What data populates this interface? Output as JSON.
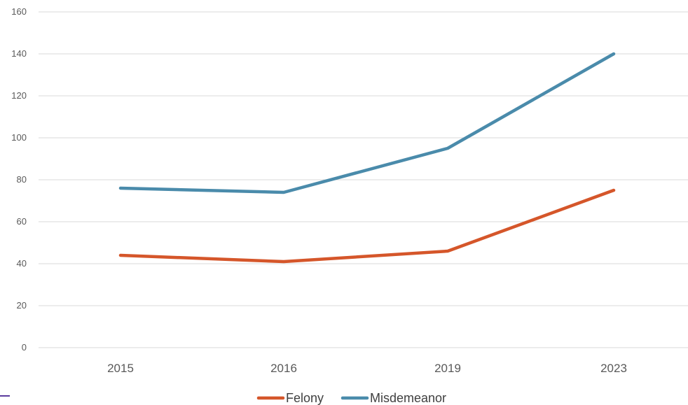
{
  "chart_data": {
    "type": "line",
    "categories": [
      "2015",
      "2016",
      "2019",
      "2023"
    ],
    "series": [
      {
        "name": "Felony",
        "values": [
          44,
          41,
          46,
          75
        ],
        "color": "#d5562a"
      },
      {
        "name": "Misdemeanor",
        "values": [
          76,
          74,
          95,
          140
        ],
        "color": "#4a8bab"
      }
    ],
    "title": "",
    "xlabel": "",
    "ylabel": "",
    "ylim": [
      0,
      160
    ],
    "yticks": [
      "0",
      "20",
      "40",
      "60",
      "80",
      "100",
      "120",
      "140",
      "160"
    ],
    "grid": true,
    "legend": "bottom-center"
  }
}
